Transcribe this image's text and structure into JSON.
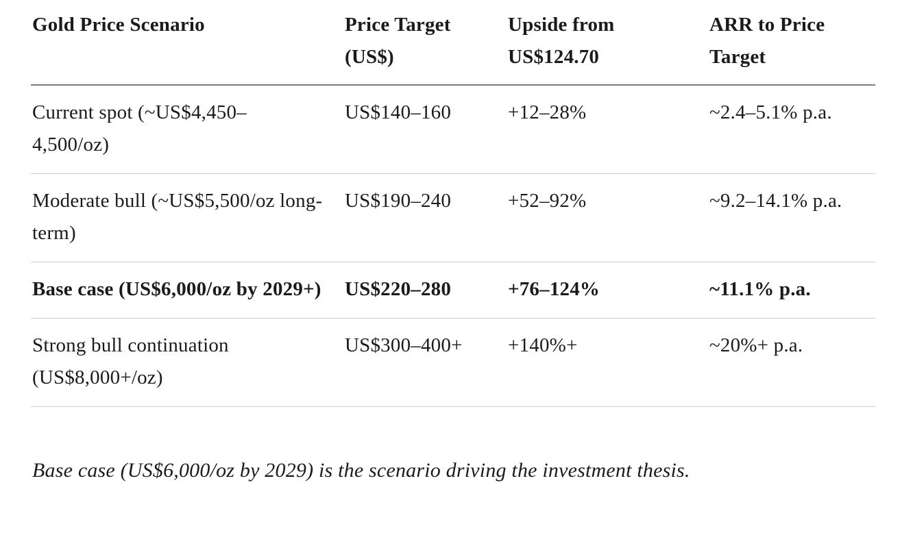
{
  "colors": {
    "background": "#ffffff",
    "text": "#1b1b1b",
    "header_rule": "#7d7d7d",
    "row_rule": "#cccccc"
  },
  "table": {
    "headers": [
      "Gold Price Scenario",
      "Price Target (US$)",
      "Upside from US$124.70",
      "ARR to Price Target"
    ],
    "rows": [
      {
        "scenario": "Current spot (~US$4,450–4,500/oz)",
        "price_target": "US$140–160",
        "upside": "+12–28%",
        "arr": "~2.4–5.1% p.a.",
        "emphasis": false
      },
      {
        "scenario": "Moderate bull (~US$5,500/oz long-term)",
        "price_target": "US$190–240",
        "upside": "+52–92%",
        "arr": "~9.2–14.1% p.a.",
        "emphasis": false
      },
      {
        "scenario": "Base case (US$6,000/oz by 2029+)",
        "price_target": "US$220–280",
        "upside": "+76–124%",
        "arr": "~11.1% p.a.",
        "emphasis": true
      },
      {
        "scenario": "Strong bull continuation (US$8,000+/oz)",
        "price_target": "US$300–400+",
        "upside": "+140%+",
        "arr": "~20%+ p.a.",
        "emphasis": false
      }
    ]
  },
  "footnote": "Base case (US$6,000/oz by 2029) is the scenario driving the investment thesis."
}
